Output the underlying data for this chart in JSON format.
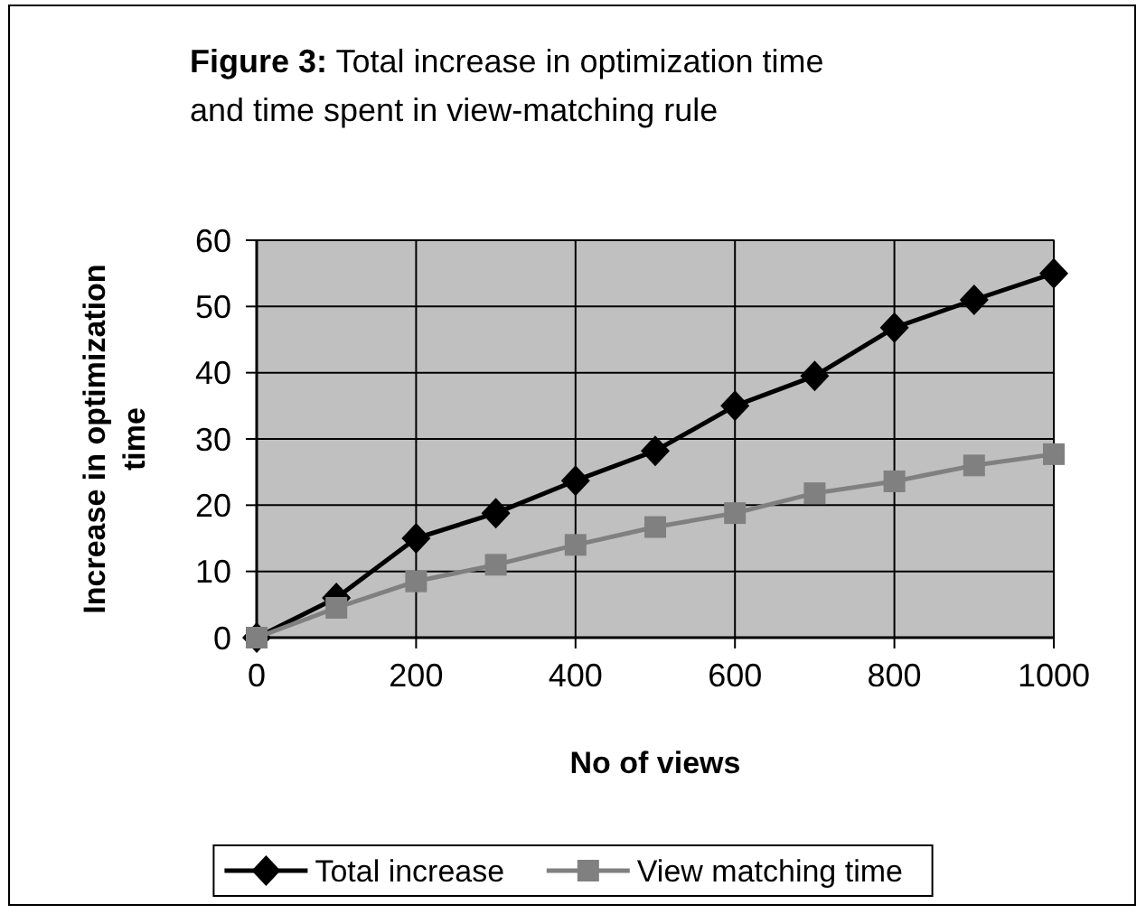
{
  "chart_data": {
    "type": "line",
    "title": "Figure 3: Total increase in optimization time and time spent in view-matching rule",
    "xlabel": "No of views",
    "ylabel": "Increase in optimization time",
    "x": [
      0,
      100,
      200,
      300,
      400,
      500,
      600,
      700,
      800,
      900,
      1000
    ],
    "series": [
      {
        "name": "Total increase",
        "color": "#000000",
        "marker": "diamond",
        "values": [
          0,
          6,
          15,
          18.8,
          23.7,
          28.2,
          35,
          39.5,
          46.8,
          51,
          55
        ]
      },
      {
        "name": "View matching time",
        "color": "#808080",
        "marker": "square",
        "values": [
          0,
          4.5,
          8.5,
          11,
          14,
          16.7,
          18.8,
          21.8,
          23.6,
          26,
          27.7
        ]
      }
    ],
    "xlim": [
      0,
      1000
    ],
    "xticks": [
      0,
      200,
      400,
      600,
      800,
      1000
    ],
    "ylim": [
      0,
      60
    ],
    "yticks": [
      0,
      10,
      20,
      30,
      40,
      50,
      60
    ],
    "grid": true,
    "legend": "bottom",
    "line_style": "solid"
  }
}
